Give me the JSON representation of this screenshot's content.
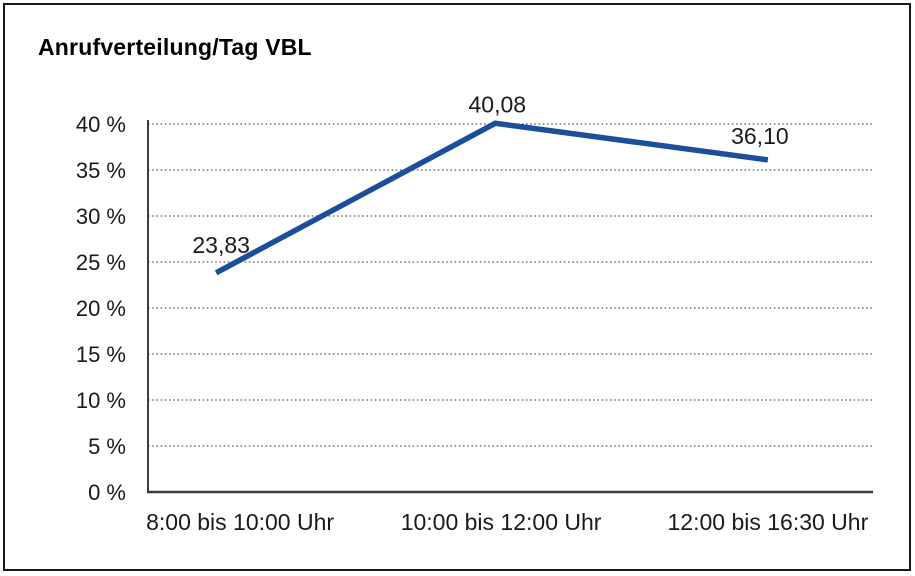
{
  "window": {
    "background": "#ffffff",
    "frame_border_color": "#1a1a1a"
  },
  "chart_data": {
    "type": "line",
    "title": "Anrufverteilung/Tag VBL",
    "categories": [
      "8:00 bis 10:00 Uhr",
      "10:00 bis 12:00 Uhr",
      "12:00 bis 16:30 Uhr"
    ],
    "series": [
      {
        "name": "Anrufverteilung",
        "values": [
          23.83,
          40.08,
          36.1
        ],
        "point_labels": [
          "23,83",
          "40,08",
          "36,10"
        ]
      }
    ],
    "xlabel": "",
    "ylabel": "",
    "ylim": [
      0,
      40
    ],
    "ytick_step": 5,
    "yticks": [
      "0 %",
      "5 %",
      "10 %",
      "15 %",
      "20 %",
      "25 %",
      "30 %",
      "35 %",
      "40 %"
    ],
    "grid": "horizontal-dotted",
    "legend": "none",
    "line_color": "#1b4e9b",
    "grid_color": "#5a5a5a",
    "axis_color": "#3c3c3c",
    "text_color": "#1a1a1a"
  }
}
